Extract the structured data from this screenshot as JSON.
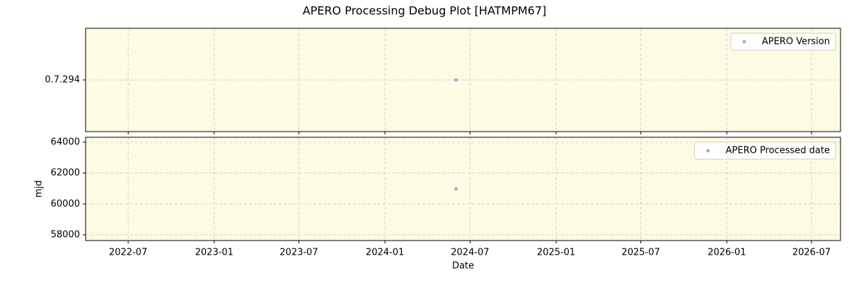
{
  "title": "APERO Processing Debug Plot [HATMPM67]",
  "chart_data": [
    {
      "type": "scatter",
      "series": [
        {
          "name": "APERO Version",
          "color": "#1f77b4",
          "x": [
            "2024-06"
          ],
          "values": [
            "0.7.294"
          ]
        }
      ],
      "yticks": [
        "0.7.294"
      ],
      "grid": true,
      "legend": "upper right"
    },
    {
      "type": "scatter",
      "series": [
        {
          "name": "APERO Processed date",
          "color": "#1f77b4",
          "x": [
            "2024-06"
          ],
          "values": [
            60980
          ]
        }
      ],
      "xlabel": "Date",
      "ylabel": "mjd",
      "xlim": [
        "2022-04",
        "2026-09"
      ],
      "xticks": [
        "2022-07",
        "2023-01",
        "2023-07",
        "2024-01",
        "2024-07",
        "2025-01",
        "2025-07",
        "2026-01",
        "2026-07"
      ],
      "ylim": [
        57630,
        64320
      ],
      "yticks": [
        58000,
        60000,
        62000,
        64000
      ],
      "grid": true,
      "legend": "upper right"
    }
  ]
}
